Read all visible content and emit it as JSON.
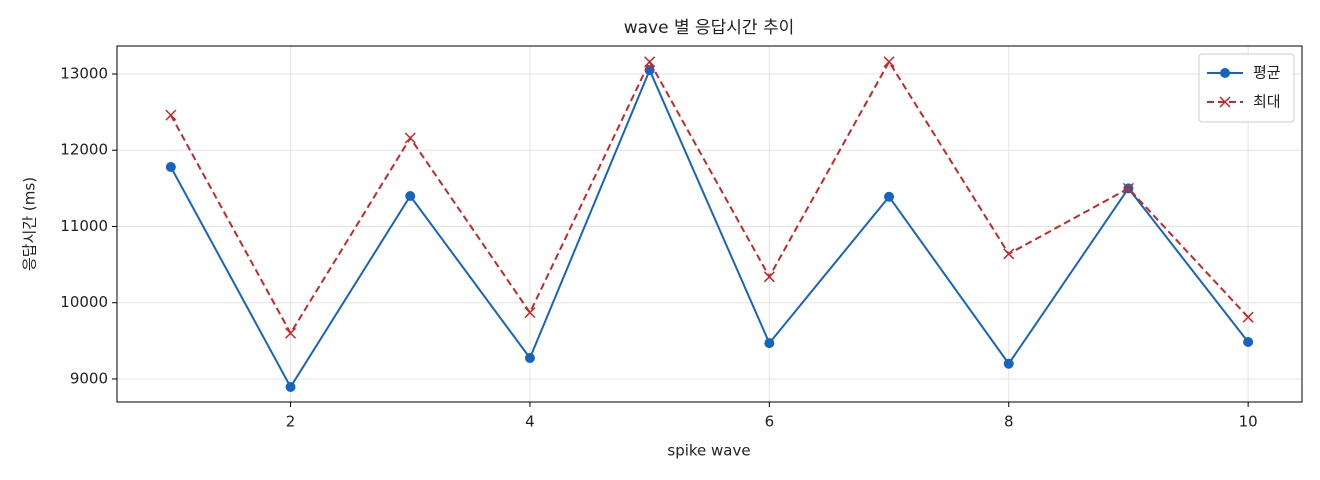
{
  "chart_data": {
    "type": "line",
    "title": "wave 별 응답시간 추이",
    "xlabel": "spike wave",
    "ylabel": "응답시간 (ms)",
    "x": [
      1,
      2,
      3,
      4,
      5,
      6,
      7,
      8,
      9,
      10
    ],
    "series": [
      {
        "name": "평균",
        "color": "#1565c0",
        "marker": "o",
        "linestyle": "solid",
        "values": [
          11780,
          8895,
          11400,
          9275,
          13050,
          9470,
          11390,
          9200,
          11500,
          9485
        ]
      },
      {
        "name": "최대",
        "color": "#c62828",
        "marker": "x",
        "linestyle": "dashed",
        "values": [
          12460,
          9600,
          12160,
          9870,
          13160,
          10340,
          13160,
          10640,
          11500,
          9810
        ]
      }
    ],
    "xlim": [
      0.55,
      10.45
    ],
    "xticks": [
      2,
      4,
      6,
      8,
      10
    ],
    "ylim": [
      8698,
      13367
    ],
    "yticks": [
      9000,
      10000,
      11000,
      12000,
      13000
    ],
    "grid": true,
    "legend": "upper right"
  }
}
